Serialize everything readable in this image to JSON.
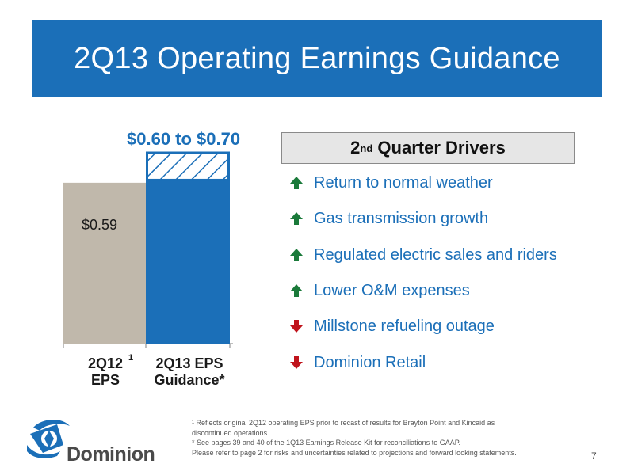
{
  "slide": {
    "title": "2Q13 Operating Earnings Guidance",
    "page_number": "7"
  },
  "chart_data": {
    "type": "bar",
    "categories": [
      "2Q12 EPS",
      "2Q13 EPS Guidance*"
    ],
    "values": [
      0.59,
      0.65
    ],
    "range": [
      0.6,
      0.7
    ],
    "value_label": "$0.59",
    "range_label": "$0.60 to $0.70",
    "ylim": [
      0,
      0.7
    ],
    "colors": {
      "2Q12": "#c0b8ab",
      "2Q13": "#1b6fb8",
      "hatch": "#1b6fb8"
    }
  },
  "categories_display": {
    "cat1_line1": "2Q12",
    "cat1_sup": "1",
    "cat1_line2": "EPS",
    "cat2_line1": "2Q13 EPS",
    "cat2_line2": "Guidance*"
  },
  "drivers": {
    "heading_prefix": "2",
    "heading_sup": "nd",
    "heading_suffix": " Quarter Drivers",
    "items": [
      {
        "text": "Return to normal weather",
        "direction": "up"
      },
      {
        "text": "Gas transmission growth",
        "direction": "up"
      },
      {
        "text": "Regulated electric sales and riders",
        "direction": "up"
      },
      {
        "text": "Lower O&M expenses",
        "direction": "up"
      },
      {
        "text": "Millstone refueling outage",
        "direction": "down"
      },
      {
        "text": "Dominion Retail",
        "direction": "down"
      }
    ],
    "colors": {
      "up": "#1a7a3a",
      "down": "#c0141c"
    }
  },
  "footer": {
    "notes": [
      "¹ Reflects original 2Q12 operating EPS prior to recast of results for Brayton Point and Kincaid as",
      "discontinued operations.",
      " * See pages 39 and 40 of the 1Q13 Earnings Release Kit for reconciliations to GAAP.",
      "Please refer to page 2 for risks and uncertainties related to projections and forward looking statements."
    ],
    "logo_text": "Dominion"
  }
}
